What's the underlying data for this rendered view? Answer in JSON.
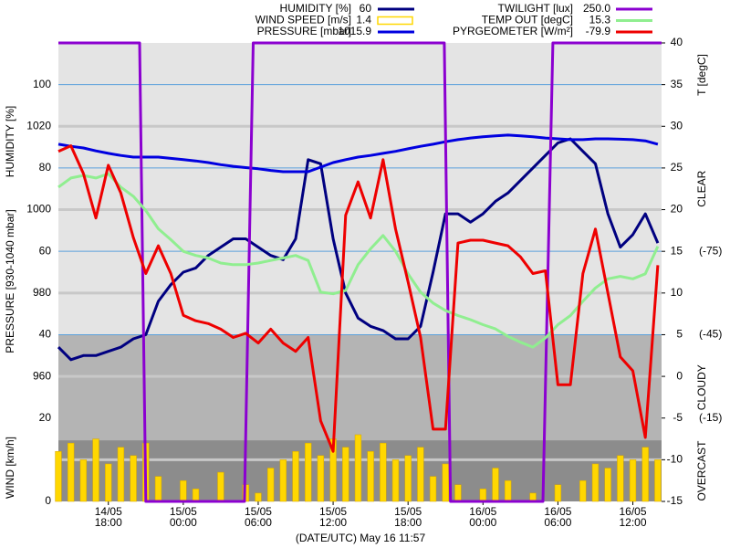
{
  "chart_data": {
    "type": "line",
    "x_label": "(DATE/UTC) May 16 11:57",
    "xlim": [
      14,
      62.3
    ],
    "xticks": [
      {
        "value": 18,
        "date": "14/05",
        "time": "18:00"
      },
      {
        "value": 24,
        "date": "15/05",
        "time": "00:00"
      },
      {
        "value": 30,
        "date": "15/05",
        "time": "06:00"
      },
      {
        "value": 36,
        "date": "15/05",
        "time": "12:00"
      },
      {
        "value": 42,
        "date": "15/05",
        "time": "18:00"
      },
      {
        "value": 48,
        "date": "16/05",
        "time": "00:00"
      },
      {
        "value": 54,
        "date": "16/05",
        "time": "06:00"
      },
      {
        "value": 60,
        "date": "16/05",
        "time": "12:00"
      }
    ],
    "axes": {
      "humidity": {
        "label": "HUMIDITY [%]",
        "lim": [
          0,
          110
        ],
        "ticks": [
          40,
          60,
          80,
          100
        ]
      },
      "pressure": {
        "label": "PRESSURE [930-1040 mbar]",
        "lim": [
          930,
          1040
        ],
        "ticks": [
          960,
          980,
          1000,
          1020
        ],
        "grid": [
          940,
          960,
          980,
          1000,
          1020
        ]
      },
      "wind": {
        "label": "WIND [km/h]",
        "lim": [
          0,
          110
        ],
        "ticks": [
          0,
          20
        ]
      },
      "temp": {
        "label": "T [degC]",
        "lim": [
          -15,
          40
        ],
        "ticks": [
          -15,
          -10,
          -5,
          0,
          5,
          10,
          15,
          20,
          25,
          30,
          35,
          40
        ]
      },
      "pyrgeometer": {
        "lim": [
          15,
          -150
        ],
        "ticks": [
          {
            "value": -75,
            "label": "(-75)"
          },
          {
            "value": -45,
            "label": "(-45)"
          },
          {
            "value": -15,
            "label": "(-15)"
          }
        ]
      },
      "twilight": {
        "lim": [
          0,
          250
        ]
      }
    },
    "sky": {
      "axis": "pyrgeometer",
      "bands": [
        {
          "label": "CLEAR",
          "from": -150,
          "to": -45,
          "color": "#e4e4e4"
        },
        {
          "label": "CLOUDY",
          "from": -45,
          "to": -7,
          "color": "#b4b4b4"
        },
        {
          "label": "OVERCAST",
          "from": -7,
          "to": 15,
          "color": "#8c8c8c"
        }
      ]
    },
    "x": [
      14,
      15,
      16,
      17,
      18,
      19,
      20,
      21,
      22,
      23,
      24,
      25,
      26,
      27,
      28,
      29,
      30,
      31,
      32,
      33,
      34,
      35,
      36,
      37,
      38,
      39,
      40,
      41,
      42,
      43,
      44,
      45,
      46,
      47,
      48,
      49,
      50,
      51,
      52,
      53,
      54,
      55,
      56,
      57,
      58,
      59,
      60,
      61,
      62
    ],
    "series": [
      {
        "name": "HUMIDITY [%]",
        "current": "60",
        "color": "#000080",
        "axis": "humidity",
        "kind": "line",
        "values": [
          37,
          34,
          35,
          35,
          36,
          37,
          39,
          40,
          48,
          52,
          55,
          56,
          59,
          61,
          63,
          63,
          61,
          59,
          58,
          63,
          82,
          81,
          63,
          50,
          44,
          42,
          41,
          39,
          39,
          42,
          55,
          69,
          69,
          67,
          69,
          72,
          74,
          77,
          80,
          83,
          86,
          87,
          84,
          81,
          69,
          61,
          64,
          69,
          62
        ]
      },
      {
        "name": "WIND SPEED [m/s]",
        "current": "1.4",
        "color": "#ffd700",
        "axis": "wind",
        "kind": "bar",
        "values": [
          12,
          14,
          10,
          15,
          9,
          13,
          11,
          14,
          6,
          0,
          5,
          3,
          0,
          7,
          0,
          4,
          2,
          8,
          10,
          12,
          14,
          11,
          15,
          13,
          16,
          12,
          14,
          10,
          11,
          13,
          6,
          9,
          4,
          0,
          3,
          8,
          5,
          0,
          2,
          0,
          4,
          0,
          5,
          9,
          8,
          11,
          10,
          13,
          10
        ]
      },
      {
        "name": "PRESSURE [mbar]",
        "current": "1015.9",
        "color": "#0000e0",
        "axis": "pressure",
        "kind": "line",
        "values": [
          1015.7,
          1015.2,
          1014.8,
          1014.1,
          1013.5,
          1013.0,
          1012.6,
          1012.6,
          1012.6,
          1012.3,
          1012.0,
          1011.7,
          1011.3,
          1010.8,
          1010.4,
          1010.1,
          1009.8,
          1009.4,
          1009.1,
          1009.1,
          1009.1,
          1010.2,
          1011.3,
          1012.0,
          1012.6,
          1013.0,
          1013.5,
          1014.0,
          1014.6,
          1015.2,
          1015.7,
          1016.3,
          1016.8,
          1017.2,
          1017.5,
          1017.7,
          1017.9,
          1017.7,
          1017.5,
          1017.2,
          1017.0,
          1016.8,
          1016.8,
          1017.0,
          1017.0,
          1016.9,
          1016.8,
          1016.5,
          1015.7
        ]
      },
      {
        "name": "TWILIGHT [lux]",
        "current": "250.0",
        "color": "#8b00d0",
        "axis": "twilight",
        "kind": "line",
        "x": [
          14,
          20.5,
          21.0,
          28.9,
          29.6,
          44.9,
          45.4,
          52.8,
          53.6,
          62.3
        ],
        "values": [
          250,
          250,
          0,
          0,
          250,
          250,
          0,
          0,
          250,
          250
        ]
      },
      {
        "name": "TEMP OUT [degC]",
        "current": "15.3",
        "color": "#90ee90",
        "axis": "temp",
        "kind": "line",
        "values": [
          22.7,
          23.8,
          24.1,
          23.8,
          24.3,
          22.7,
          21.6,
          19.9,
          17.7,
          16.4,
          15,
          14.5,
          14.2,
          13.6,
          13.4,
          13.4,
          13.6,
          13.9,
          14.2,
          14.5,
          13.9,
          10.1,
          9.9,
          10.3,
          13.4,
          15.3,
          16.9,
          15,
          12.3,
          10.1,
          8.8,
          7.9,
          7.3,
          6.8,
          6.2,
          5.7,
          4.8,
          4.1,
          3.5,
          4.6,
          6.2,
          7.3,
          9,
          10.6,
          11.7,
          12,
          11.7,
          12.3,
          15.6
        ]
      },
      {
        "name": "PYRGEOMETER [W/m²]",
        "current": "-79.9",
        "color": "#ee0000",
        "axis": "pyrgeometer",
        "kind": "line",
        "values": [
          -111,
          -113,
          -103,
          -87,
          -106,
          -96,
          -80,
          -67,
          -77,
          -67,
          -52,
          -50,
          -49,
          -47,
          -44,
          -45.5,
          -42,
          -47,
          -42,
          -39,
          -44,
          -14,
          -3,
          -88,
          -100,
          -87,
          -108,
          -83,
          -64,
          -44,
          -11,
          -11,
          -78,
          -79,
          -79,
          -78,
          -77,
          -73,
          -67,
          -68,
          -27,
          -27,
          -67,
          -83,
          -60,
          -37,
          -32,
          -8,
          -70
        ]
      }
    ]
  }
}
